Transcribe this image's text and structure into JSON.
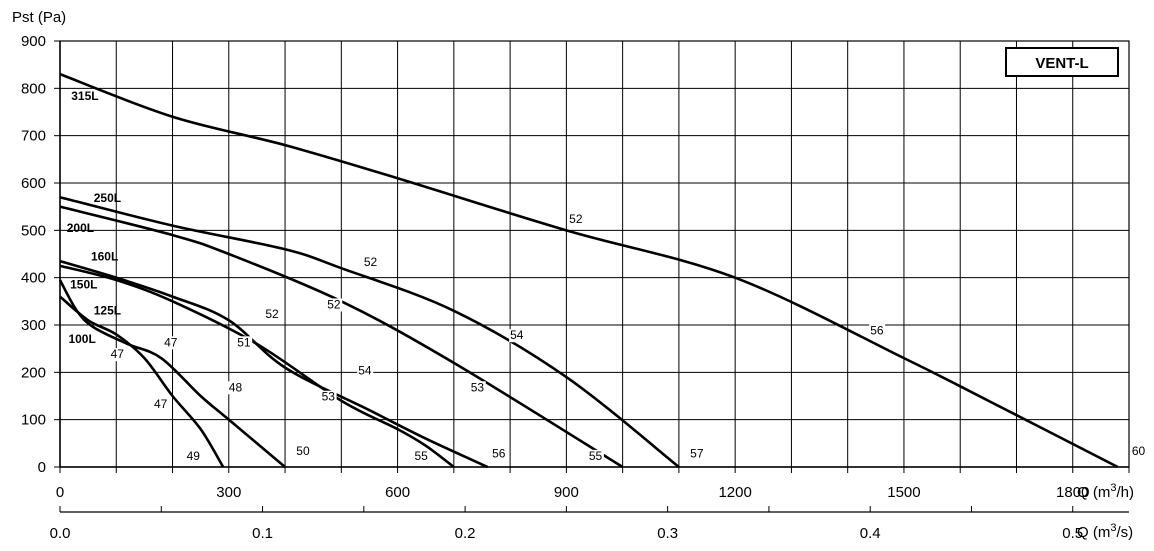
{
  "chart_data": {
    "type": "line",
    "title": "",
    "badge": "VENT-L",
    "y_axis": {
      "label": "Pst (Pa)",
      "ticks": [
        "0",
        "100",
        "200",
        "300",
        "400",
        "500",
        "600",
        "700",
        "800",
        "900"
      ],
      "ylim": [
        0,
        900
      ]
    },
    "x_axis_primary": {
      "label_prefix": "Q (m",
      "label_sup": "3",
      "label_suffix": "/h)",
      "ticks": [
        "0",
        "300",
        "600",
        "900",
        "1200",
        "1500",
        "1800"
      ],
      "xlim": [
        0,
        1900
      ]
    },
    "x_axis_secondary": {
      "label_prefix": "Q (m",
      "label_sup": "3",
      "label_suffix": "/s)",
      "ticks": [
        "0.0",
        "0.1",
        "0.2",
        "0.3",
        "0.4",
        "0.5"
      ],
      "tick_values": [
        0,
        0.1,
        0.2,
        0.3,
        0.4,
        0.5
      ]
    },
    "grid": true,
    "series": [
      {
        "name": "315L",
        "points": [
          [
            0,
            830
          ],
          [
            200,
            740
          ],
          [
            400,
            680
          ],
          [
            600,
            610
          ],
          [
            900,
            500
          ],
          [
            1200,
            400
          ],
          [
            1500,
            230
          ],
          [
            1650,
            140
          ],
          [
            1880,
            0
          ]
        ]
      },
      {
        "name": "250L",
        "points": [
          [
            0,
            570
          ],
          [
            200,
            510
          ],
          [
            400,
            460
          ],
          [
            500,
            420
          ],
          [
            700,
            330
          ],
          [
            900,
            190
          ],
          [
            1100,
            0
          ]
        ]
      },
      {
        "name": "200L",
        "points": [
          [
            0,
            550
          ],
          [
            200,
            490
          ],
          [
            300,
            450
          ],
          [
            500,
            350
          ],
          [
            700,
            220
          ],
          [
            1000,
            0
          ]
        ]
      },
      {
        "name": "160L",
        "points": [
          [
            0,
            435
          ],
          [
            100,
            400
          ],
          [
            200,
            360
          ],
          [
            300,
            310
          ],
          [
            400,
            210
          ],
          [
            550,
            120
          ],
          [
            650,
            60
          ],
          [
            760,
            0
          ]
        ]
      },
      {
        "name": "150L",
        "points": [
          [
            0,
            425
          ],
          [
            100,
            395
          ],
          [
            200,
            350
          ],
          [
            350,
            260
          ],
          [
            500,
            140
          ],
          [
            600,
            80
          ],
          [
            650,
            45
          ],
          [
            700,
            0
          ]
        ]
      },
      {
        "name": "125L",
        "points": [
          [
            0,
            395
          ],
          [
            30,
            330
          ],
          [
            60,
            295
          ],
          [
            120,
            260
          ],
          [
            180,
            230
          ],
          [
            250,
            150
          ],
          [
            300,
            100
          ],
          [
            400,
            0
          ]
        ]
      },
      {
        "name": "100L",
        "points": [
          [
            0,
            360
          ],
          [
            50,
            310
          ],
          [
            100,
            280
          ],
          [
            150,
            230
          ],
          [
            200,
            150
          ],
          [
            250,
            80
          ],
          [
            290,
            0
          ]
        ]
      }
    ],
    "series_labels": [
      {
        "text": "315L",
        "x": 20,
        "y": 775
      },
      {
        "text": "250L",
        "x": 60,
        "y": 560
      },
      {
        "text": "200L",
        "x": 12,
        "y": 497
      },
      {
        "text": "160L",
        "x": 55,
        "y": 436
      },
      {
        "text": "150L",
        "x": 18,
        "y": 377
      },
      {
        "text": "125L",
        "x": 60,
        "y": 322
      },
      {
        "text": "100L",
        "x": 15,
        "y": 262
      }
    ],
    "annotations": [
      {
        "text": "52",
        "x": 905,
        "y": 515
      },
      {
        "text": "56",
        "x": 1440,
        "y": 280
      },
      {
        "text": "60",
        "x": 1905,
        "y": 25
      },
      {
        "text": "52",
        "x": 540,
        "y": 425
      },
      {
        "text": "54",
        "x": 800,
        "y": 270
      },
      {
        "text": "57",
        "x": 1120,
        "y": 20
      },
      {
        "text": "52",
        "x": 475,
        "y": 335
      },
      {
        "text": "53",
        "x": 730,
        "y": 160
      },
      {
        "text": "55",
        "x": 940,
        "y": 15
      },
      {
        "text": "52",
        "x": 365,
        "y": 315
      },
      {
        "text": "51",
        "x": 315,
        "y": 255
      },
      {
        "text": "54",
        "x": 530,
        "y": 195
      },
      {
        "text": "53",
        "x": 465,
        "y": 140
      },
      {
        "text": "56",
        "x": 768,
        "y": 20
      },
      {
        "text": "55",
        "x": 630,
        "y": 15
      },
      {
        "text": "47",
        "x": 185,
        "y": 255
      },
      {
        "text": "47",
        "x": 90,
        "y": 230
      },
      {
        "text": "48",
        "x": 300,
        "y": 160
      },
      {
        "text": "47",
        "x": 167,
        "y": 125
      },
      {
        "text": "49",
        "x": 225,
        "y": 15
      },
      {
        "text": "50",
        "x": 420,
        "y": 25
      }
    ]
  }
}
